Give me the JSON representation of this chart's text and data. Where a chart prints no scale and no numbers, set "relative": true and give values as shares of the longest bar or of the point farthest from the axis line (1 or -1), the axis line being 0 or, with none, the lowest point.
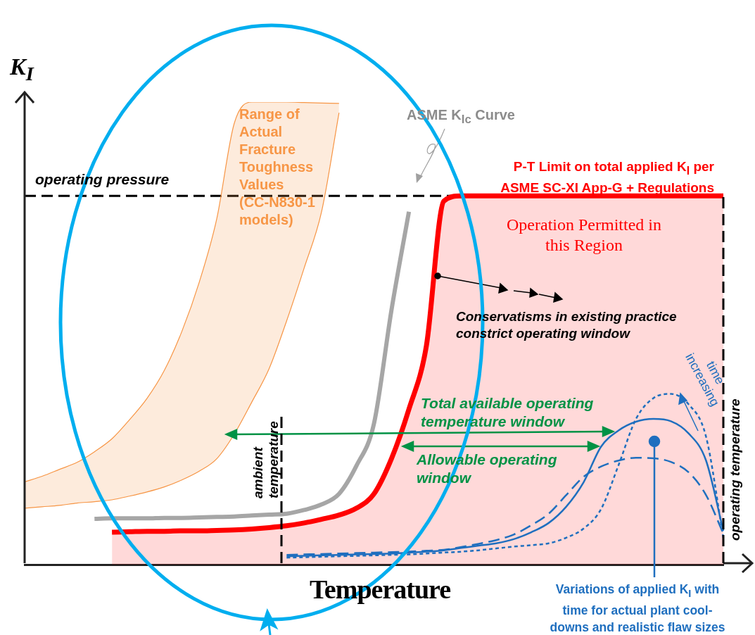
{
  "chart_data": {
    "type": "line",
    "relative": true,
    "legend": false,
    "grid": false,
    "xlabel": "Temperature",
    "ylabel": "K$_{I}$",
    "categories": [
      null,
      null,
      null,
      null,
      null,
      null,
      null,
      null,
      null,
      null,
      null,
      null,
      null,
      null,
      null,
      null,
      null,
      null,
      null,
      null,
      null,
      null,
      null,
      null,
      null,
      null,
      null,
      null,
      null,
      null,
      null,
      null,
      null,
      null,
      null,
      null,
      null,
      null,
      null,
      null,
      null
    ],
    "series": [
      {
        "color": "#f79646",
        "values": [
          0.122,
          0.125,
          0.128,
          0.133,
          0.136,
          0.14,
          0.148,
          0.157,
          0.168,
          0.183,
          0.202,
          0.229,
          0.282,
          0.351,
          0.424,
          0.527,
          0.641,
          0.763,
          0.977,
          null,
          null,
          null,
          null,
          null,
          null,
          null,
          null,
          null,
          null,
          null,
          null,
          null,
          null,
          null,
          null,
          null,
          null,
          null,
          null,
          null,
          null
        ]
      },
      {
        "type": "area",
        "color": "#f79646",
        "values": [
          0.179,
          0.191,
          0.206,
          0.221,
          0.244,
          0.272,
          0.313,
          0.359,
          0.42,
          0.504,
          0.611,
          0.748,
          0.954,
          1,
          1,
          1,
          0.999,
          0.998,
          0.997,
          null,
          null,
          null,
          null,
          null,
          null,
          null,
          null,
          null,
          null,
          null,
          null,
          null,
          null,
          null,
          null,
          null,
          null,
          null,
          null,
          null,
          null
        ]
      },
      {
        "type": "area",
        "color": "#ff0000",
        "values": [
          null,
          null,
          null,
          null,
          null,
          0.07,
          0.071,
          0.072,
          0.072,
          0.073,
          0.073,
          0.074,
          0.075,
          0.077,
          0.08,
          0.084,
          0.09,
          0.098,
          0.107,
          0.122,
          0.153,
          0.229,
          0.336,
          0.473,
          0.786,
          0.797,
          0.797,
          0.797,
          0.797,
          0.797,
          0.797,
          0.797,
          0.797,
          0.797,
          0.797,
          0.797,
          0.797,
          0.797,
          0.797,
          0.797,
          0.797
        ]
      },
      {
        "color": "#a6a6a6",
        "values": [
          null,
          null,
          null,
          null,
          0.099,
          0.1,
          0.1,
          0.1,
          0.101,
          0.101,
          0.102,
          0.103,
          0.104,
          0.106,
          0.108,
          0.11,
          0.118,
          0.13,
          0.153,
          0.214,
          0.305,
          0.55,
          0.763,
          null,
          null,
          null,
          null,
          null,
          null,
          null,
          null,
          null,
          null,
          null,
          null,
          null,
          null,
          null,
          null,
          null,
          null
        ]
      },
      {
        "color": "#1f6fbf",
        "line_style": "solid",
        "values": [
          null,
          null,
          null,
          null,
          null,
          null,
          null,
          null,
          null,
          null,
          null,
          null,
          null,
          null,
          null,
          0.018,
          0.019,
          0.02,
          0.021,
          0.022,
          0.023,
          0.024,
          0.026,
          0.028,
          0.031,
          0.036,
          0.041,
          0.046,
          0.055,
          0.07,
          0.09,
          0.125,
          0.178,
          0.255,
          0.29,
          0.309,
          0.315,
          0.31,
          0.284,
          0.226,
          0.073
        ]
      },
      {
        "color": "#1f6fbf",
        "line_style": "dashed",
        "values": [
          null,
          null,
          null,
          null,
          null,
          null,
          null,
          null,
          null,
          null,
          null,
          null,
          null,
          null,
          null,
          0.021,
          0.022,
          0.023,
          0.024,
          0.025,
          0.026,
          0.027,
          0.028,
          0.03,
          0.032,
          0.038,
          0.045,
          0.053,
          0.065,
          0.085,
          0.11,
          0.15,
          0.19,
          0.212,
          0.225,
          0.231,
          0.23,
          0.222,
          0.2,
          0.151,
          0.067
        ]
      },
      {
        "color": "#1f6fbf",
        "line_style": "dotted",
        "values": [
          null,
          null,
          null,
          null,
          null,
          null,
          null,
          null,
          null,
          null,
          null,
          null,
          null,
          null,
          null,
          0.015,
          0.016,
          0.017,
          0.018,
          0.019,
          0.02,
          0.021,
          0.022,
          0.024,
          0.026,
          0.028,
          0.031,
          0.035,
          0.039,
          0.042,
          0.046,
          0.058,
          0.078,
          0.12,
          0.215,
          0.315,
          0.36,
          0.369,
          0.347,
          0.278,
          0.058
        ]
      }
    ],
    "ref_lines": [
      {
        "axis": "y",
        "value": 0.797,
        "label": "operating pressure",
        "line_style": "dashed"
      }
    ],
    "annotations": [
      "Range of Actual Fracture Toughness Values (CC-N830-1 models)",
      "ASME K$_{Ic}$ Curve",
      "P-T Limit on total applied K$_{I}$ per ASME SC-XI App-G + Regulations",
      "Operation Permitted in this Region",
      "Conservatisms in existing practice constrict operating window",
      "Total available operating temperature window",
      "Allowable operating window",
      "time increasing",
      "Variations of applied K$_{I}$ with time for actual plant cool-downs and realistic flaw sizes",
      "ambient temperature",
      "operating temperature"
    ]
  }
}
